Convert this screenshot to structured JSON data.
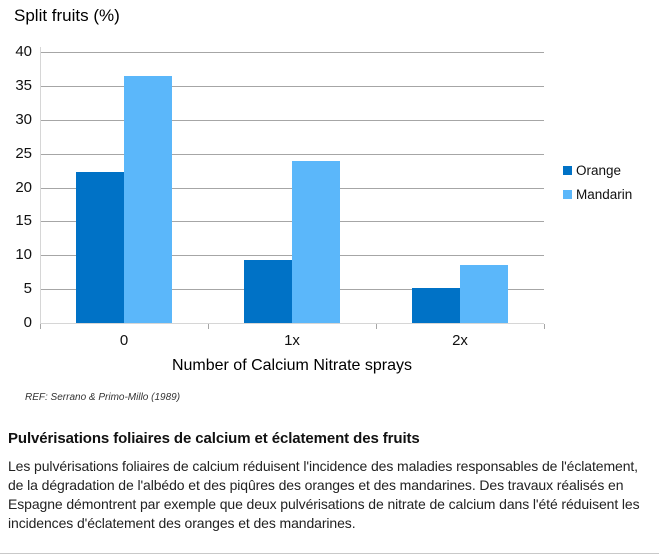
{
  "chart_data": {
    "type": "bar",
    "title": "Split fruits (%)",
    "categories": [
      "0",
      "1x",
      "2x"
    ],
    "series": [
      {
        "name": "Orange",
        "color": "#0072C6",
        "values": [
          22.3,
          9.3,
          5.1
        ]
      },
      {
        "name": "Mandarin",
        "color": "#5BB7FA",
        "values": [
          36.5,
          23.9,
          8.5
        ]
      }
    ],
    "xlabel": "Number of Calcium Nitrate sprays",
    "ylabel": "",
    "ylim": [
      0,
      40
    ],
    "ytick_step": 5,
    "grid": true,
    "legend_position": "right",
    "grid_color": "#A6A6A6",
    "axis_color": "#D6D6D6",
    "tick_color": "#A6A6A6"
  },
  "chart_footer": {
    "ref_note": "REF: Serrano & Primo-Millo (1989)"
  },
  "article": {
    "heading": "Pulvérisations foliaires de calcium et éclatement des fruits",
    "body": "Les pulvérisations foliaires de calcium réduisent l'incidence des maladies responsables de l'éclatement, de la dégradation de l'albédo et des piqûres des oranges et des mandarines. Des travaux réalisés en Espagne démontrent par exemple que deux pulvérisations de nitrate de calcium dans l'été réduisent les incidences d'éclatement des oranges et des mandarines."
  }
}
